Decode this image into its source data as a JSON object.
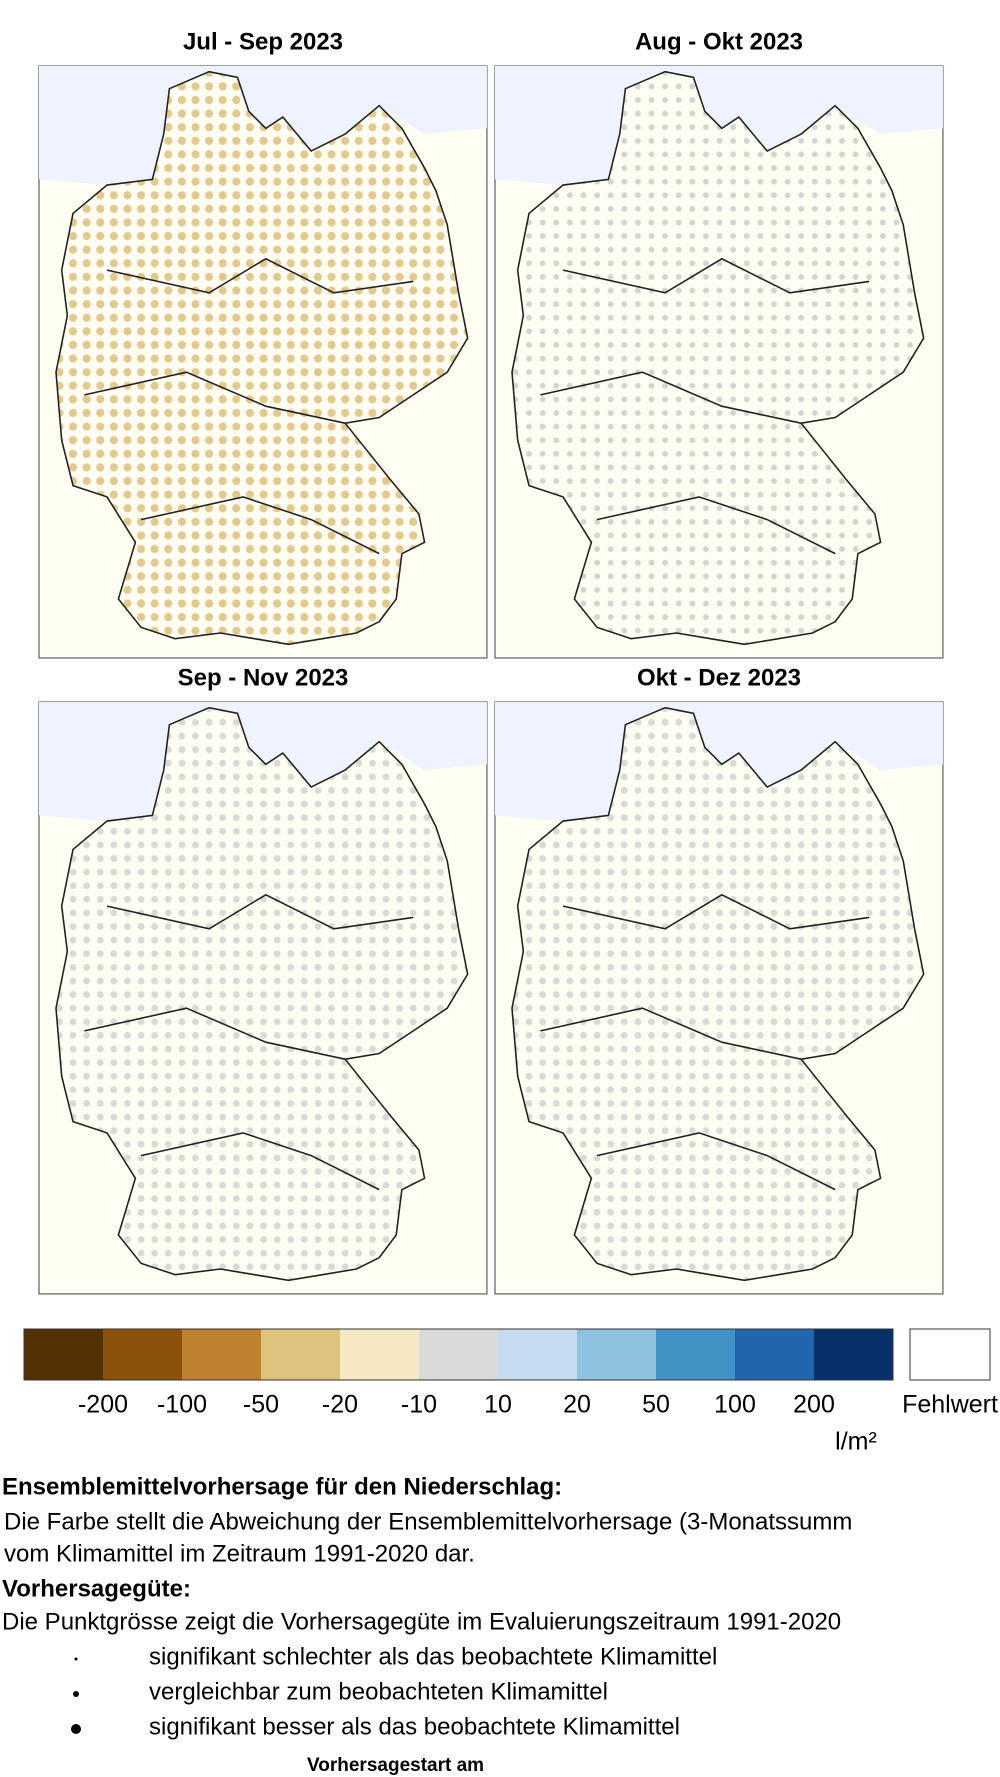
{
  "panels": [
    {
      "title": "Jul - Sep 2023"
    },
    {
      "title": "Aug - Okt 2023"
    },
    {
      "title": "Sep - Nov 2023"
    },
    {
      "title": "Okt - Dez 2023"
    }
  ],
  "legend": {
    "colors": [
      "#543005",
      "#8c510a",
      "#bf812d",
      "#dfc27d",
      "#f6e8c3",
      "#d9d9d9",
      "#c6dbef",
      "#8fc2de",
      "#4292c6",
      "#2166ac",
      "#08306b"
    ],
    "labels": [
      "-200",
      "-100",
      "-50",
      "-20",
      "-10",
      "10",
      "20",
      "50",
      "100",
      "200"
    ],
    "missing_label": "Fehlwert",
    "unit": "l/m²"
  },
  "text": {
    "heading1": "Ensemblemittelvorhersage für den Niederschlag:",
    "line1": "Die Farbe stellt die Abweichung der Ensemblemittelvorhersage (3-Monatssumm",
    "line2": "vom Klimamittel im Zeitraum 1991-2020 dar.",
    "heading2": "Vorhersagegüte:",
    "line3": "Die Punktgrösse zeigt die Vorhersagegüte im Evaluierungszeitraum 1991-2020",
    "items": [
      "signifikant schlechter als das beobachtete Klimamittel",
      "vergleichbar zum beobachteten Klimamittel",
      "signifikant besser als das beobachtete Klimamittel"
    ],
    "footer": "Vorhersagestart am"
  }
}
